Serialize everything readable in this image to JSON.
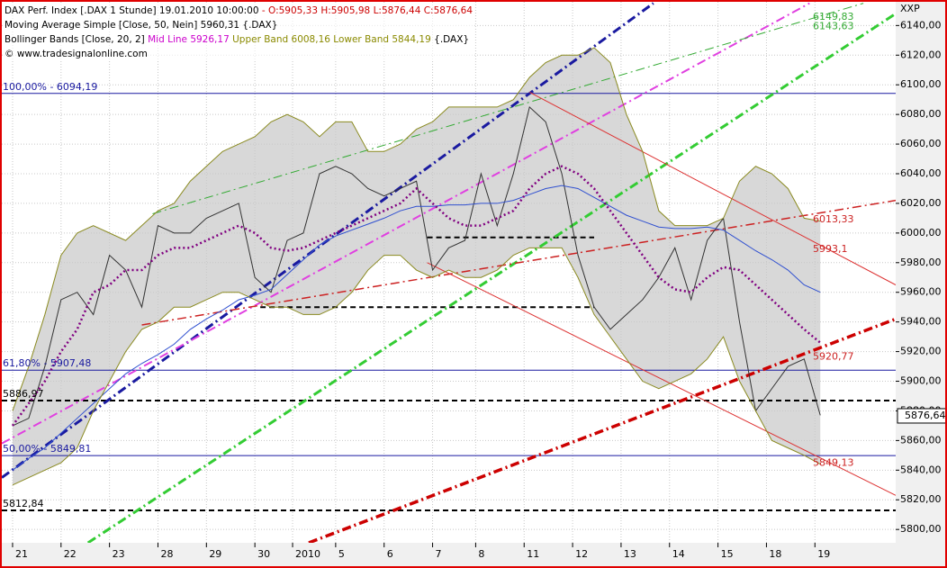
{
  "header": {
    "instrument": "DAX Perf. Index [.DAX  1 Stunde] 19.01.2010 10:00:00",
    "ohlc": "- O:5905,33 H:5905,98 L:5876,44 C:5876,64",
    "sma": "Moving Average Simple [Close, 50, Nein] 5960,31 {.DAX}",
    "bb": "Bollinger Bands [Close, 20, 2]",
    "bb_mid": "Mid Line 5926,17",
    "bb_bands": "Upper Band 6008,16 Lower Band 5844,19",
    "bb_source": "{.DAX}",
    "copyright": "© www.tradesignalonline.com",
    "axis_code": "XXP"
  },
  "chart_data": {
    "type": "line",
    "grid": true,
    "xlim": [
      -2,
      164
    ],
    "ylim": [
      5791,
      6156
    ],
    "xticks": [
      {
        "value": 0,
        "label": "21"
      },
      {
        "value": 9,
        "label": "22"
      },
      {
        "value": 18,
        "label": "23"
      },
      {
        "value": 27,
        "label": "28"
      },
      {
        "value": 36,
        "label": "29"
      },
      {
        "value": 45,
        "label": "30"
      },
      {
        "value": 52,
        "label": "2010"
      },
      {
        "value": 60,
        "label": "5"
      },
      {
        "value": 69,
        "label": "6"
      },
      {
        "value": 78,
        "label": "7"
      },
      {
        "value": 86,
        "label": "8"
      },
      {
        "value": 95,
        "label": "11"
      },
      {
        "value": 104,
        "label": "12"
      },
      {
        "value": 113,
        "label": "13"
      },
      {
        "value": 122,
        "label": "14"
      },
      {
        "value": 131,
        "label": "15"
      },
      {
        "value": 140,
        "label": "18"
      },
      {
        "value": 149,
        "label": "19"
      }
    ],
    "yticks": [
      {
        "value": 5800,
        "label": "5800,00"
      },
      {
        "value": 5820,
        "label": "5820,00"
      },
      {
        "value": 5840,
        "label": "5840,00"
      },
      {
        "value": 5860,
        "label": "5860,00"
      },
      {
        "value": 5880,
        "label": "5880,00"
      },
      {
        "value": 5900,
        "label": "5900,00"
      },
      {
        "value": 5920,
        "label": "5920,00"
      },
      {
        "value": 5940,
        "label": "5940,00"
      },
      {
        "value": 5960,
        "label": "5960,00"
      },
      {
        "value": 5980,
        "label": "5980,00"
      },
      {
        "value": 6000,
        "label": "6000,00"
      },
      {
        "value": 6020,
        "label": "6020,00"
      },
      {
        "value": 6040,
        "label": "6040,00"
      },
      {
        "value": 6060,
        "label": "6060,00"
      },
      {
        "value": 6080,
        "label": "6080,00"
      },
      {
        "value": 6100,
        "label": "6100,00"
      },
      {
        "value": 6120,
        "label": "6120,00"
      },
      {
        "value": 6140,
        "label": "6140,00"
      }
    ],
    "x": [
      0,
      3,
      6,
      9,
      12,
      15,
      18,
      21,
      24,
      27,
      30,
      33,
      36,
      39,
      42,
      45,
      48,
      51,
      54,
      57,
      60,
      63,
      66,
      69,
      72,
      75,
      78,
      81,
      84,
      87,
      90,
      93,
      96,
      99,
      102,
      105,
      108,
      111,
      114,
      117,
      120,
      123,
      126,
      129,
      132,
      135,
      138,
      141,
      144,
      147,
      150
    ],
    "series": [
      {
        "color": "#333333",
        "style": "solid",
        "values": [
          5870,
          5875,
          5910,
          5955,
          5960,
          5945,
          5985,
          5975,
          5950,
          6005,
          6000,
          6000,
          6010,
          6015,
          6020,
          5970,
          5960,
          5995,
          6000,
          6040,
          6045,
          6040,
          6030,
          6025,
          6030,
          6035,
          5975,
          5990,
          5995,
          6040,
          6005,
          6040,
          6085,
          6075,
          6040,
          5985,
          5950,
          5935,
          5945,
          5955,
          5970,
          5990,
          5955,
          5995,
          6010,
          5940,
          5880,
          5895,
          5910,
          5915,
          5877
        ]
      },
      {
        "color": "#3050d0",
        "style": "solid",
        "values": [
          5840,
          5848,
          5855,
          5865,
          5875,
          5885,
          5895,
          5905,
          5912,
          5918,
          5925,
          5935,
          5942,
          5948,
          5955,
          5958,
          5962,
          5972,
          5982,
          5992,
          5998,
          6002,
          6006,
          6010,
          6015,
          6018,
          6018,
          6019,
          6019,
          6020,
          6020,
          6022,
          6026,
          6030,
          6032,
          6030,
          6024,
          6018,
          6012,
          6008,
          6004,
          6003,
          6003,
          6004,
          6002,
          5995,
          5988,
          5982,
          5975,
          5965,
          5960
        ]
      },
      {
        "color": "#800080",
        "style": "dotted",
        "values": [
          5870,
          5885,
          5900,
          5920,
          5935,
          5960,
          5965,
          5975,
          5975,
          5985,
          5990,
          5990,
          5995,
          6000,
          6005,
          6000,
          5990,
          5988,
          5990,
          5995,
          6000,
          6005,
          6010,
          6015,
          6020,
          6030,
          6020,
          6010,
          6005,
          6005,
          6010,
          6015,
          6030,
          6040,
          6045,
          6040,
          6030,
          6015,
          6000,
          5985,
          5970,
          5962,
          5960,
          5970,
          5977,
          5975,
          5965,
          5955,
          5945,
          5935,
          5926
        ]
      },
      {
        "color": "#8a8a20",
        "style": "solid",
        "values": [
          5880,
          5910,
          5945,
          5985,
          6000,
          6005,
          6000,
          5995,
          6005,
          6015,
          6020,
          6035,
          6045,
          6055,
          6060,
          6065,
          6075,
          6080,
          6075,
          6065,
          6075,
          6075,
          6055,
          6055,
          6060,
          6070,
          6075,
          6085,
          6085,
          6085,
          6085,
          6090,
          6105,
          6115,
          6120,
          6120,
          6125,
          6115,
          6080,
          6055,
          6015,
          6005,
          6005,
          6005,
          6010,
          6035,
          6045,
          6040,
          6030,
          6010,
          6008
        ]
      },
      {
        "color": "#8a8a20",
        "style": "solid",
        "values": [
          5830,
          5835,
          5840,
          5845,
          5855,
          5880,
          5900,
          5920,
          5935,
          5940,
          5950,
          5950,
          5955,
          5960,
          5960,
          5955,
          5950,
          5950,
          5945,
          5945,
          5950,
          5960,
          5975,
          5985,
          5985,
          5975,
          5970,
          5975,
          5970,
          5970,
          5975,
          5985,
          5990,
          5990,
          5990,
          5970,
          5945,
          5930,
          5915,
          5900,
          5895,
          5900,
          5905,
          5915,
          5930,
          5900,
          5880,
          5860,
          5855,
          5850,
          5844
        ]
      }
    ],
    "trend_lines": [
      {
        "color": "#1a1aa0",
        "width": 3,
        "style": "dashdot",
        "x": [
          -2,
          119
        ],
        "y": [
          5835,
          6155
        ]
      },
      {
        "color": "#e040e0",
        "width": 2,
        "style": "dashdot",
        "x": [
          -2,
          148
        ],
        "y": [
          5858,
          6155
        ]
      },
      {
        "color": "#33cc33",
        "width": 3,
        "style": "dashdot",
        "x": [
          14,
          164
        ],
        "y": [
          5791,
          6148
        ]
      },
      {
        "color": "#33aa33",
        "width": 1,
        "style": "dashdot",
        "x": [
          26,
          158
        ],
        "y": [
          6013,
          6155
        ]
      },
      {
        "color": "#cc2222",
        "width": 1.5,
        "style": "dashdot",
        "x": [
          24,
          164
        ],
        "y": [
          5938,
          6022
        ]
      },
      {
        "color": "#cc0000",
        "width": 3.5,
        "style": "dashdot",
        "x": [
          55,
          164
        ],
        "y": [
          5791,
          5942
        ]
      },
      {
        "color": "#dd3333",
        "width": 1,
        "style": "solid",
        "x": [
          96,
          164
        ],
        "y": [
          6095,
          5965
        ]
      },
      {
        "color": "#dd3333",
        "width": 1,
        "style": "solid",
        "x": [
          77,
          164
        ],
        "y": [
          5980,
          5823
        ]
      }
    ],
    "levels": [
      {
        "value": 6094.19,
        "label": "100,00% - 6094,19",
        "color": "#1a1aa0",
        "style": "solid"
      },
      {
        "value": 5907.48,
        "label": "61,80% - 5907,48",
        "color": "#1a1aa0",
        "style": "solid"
      },
      {
        "value": 5849.81,
        "label": "50,00% - 5849,81",
        "color": "#1a1aa0",
        "style": "solid"
      },
      {
        "value": 5886.97,
        "label": "5886,97",
        "color": "#000000",
        "style": "dashed"
      },
      {
        "value": 5812.84,
        "label": "5812,84",
        "color": "#000000",
        "style": "dashed"
      },
      {
        "value": 5997,
        "color": "#000000",
        "style": "dashed",
        "x": [
          77,
          108
        ]
      },
      {
        "value": 5950,
        "color": "#000000",
        "style": "dashed",
        "x": [
          46,
          108
        ]
      }
    ],
    "annotations": [
      {
        "value": 6149.83,
        "label": "6149,83",
        "color": "#33aa33"
      },
      {
        "value": 6143.63,
        "label": "6143,63",
        "color": "#33aa33"
      },
      {
        "value": 6013.33,
        "label": "6013,33",
        "color": "#cc2222"
      },
      {
        "value": 5993.1,
        "label": "5993,1",
        "color": "#cc2222"
      },
      {
        "value": 5920.77,
        "label": "5920,77",
        "color": "#cc2222"
      },
      {
        "value": 5849.13,
        "label": "5849,13",
        "color": "#cc2222"
      }
    ],
    "last_price": {
      "value": 5876.64,
      "label": "5876,64"
    }
  }
}
